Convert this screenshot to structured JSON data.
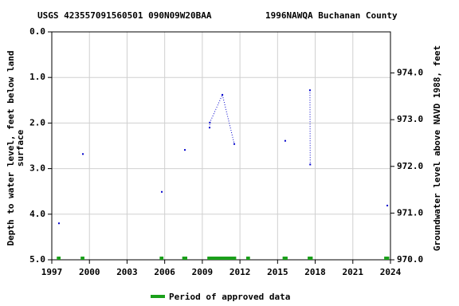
{
  "chart_data": {
    "type": "line",
    "title": "USGS 423557091560501 090N09W20BAA",
    "subtitle": "1996NAWQA Buchanan County",
    "ylabel": [
      "Depth to water level, feet below land",
      "surface"
    ],
    "y2label": "Groundwater level above NAVD 1988, feet",
    "x": [
      1997.57,
      null,
      1999.48,
      null,
      2005.77,
      null,
      2007.61,
      null,
      2009.58,
      2009.6,
      2010.6,
      2011.55,
      null,
      2015.61,
      null,
      2017.58,
      2017.6,
      null,
      2023.75
    ],
    "series": [
      {
        "name": "Depth to water level",
        "color": "#0000cc",
        "values": [
          4.2,
          null,
          2.68,
          null,
          3.51,
          null,
          2.59,
          null,
          2.1,
          1.99,
          1.38,
          2.46,
          null,
          2.39,
          null,
          1.28,
          2.91,
          null,
          3.81
        ]
      }
    ],
    "approved_periods": {
      "name": "Period of approved data",
      "color": "#1aa01a",
      "ranges": [
        [
          1997.4,
          1997.7
        ],
        [
          1999.3,
          1999.6
        ],
        [
          2005.6,
          2005.9
        ],
        [
          2007.4,
          2007.8
        ],
        [
          2009.4,
          2011.7
        ],
        [
          2012.5,
          2012.8
        ],
        [
          2015.4,
          2015.8
        ],
        [
          2017.4,
          2017.8
        ],
        [
          2023.5,
          2023.9
        ]
      ]
    },
    "xlim": [
      1997,
      2024
    ],
    "xticks": [
      1997,
      2000,
      2003,
      2006,
      2009,
      2012,
      2015,
      2018,
      2021,
      2024
    ],
    "ylim": [
      5,
      0
    ],
    "yticks": [
      {
        "value": 0,
        "label": "0.0"
      },
      {
        "value": 1,
        "label": "1.0"
      },
      {
        "value": 2,
        "label": "2.0"
      },
      {
        "value": 3,
        "label": "3.0"
      },
      {
        "value": 4,
        "label": "4.0"
      },
      {
        "value": 5,
        "label": "5.0"
      }
    ],
    "y2lim": [
      970,
      974.88
    ],
    "y2ticks": [
      {
        "value": 970,
        "label": "970.0"
      },
      {
        "value": 971,
        "label": "971.0"
      },
      {
        "value": 972,
        "label": "972.0"
      },
      {
        "value": 973,
        "label": "973.0"
      },
      {
        "value": 974,
        "label": "974.0"
      }
    ],
    "grid": true
  }
}
